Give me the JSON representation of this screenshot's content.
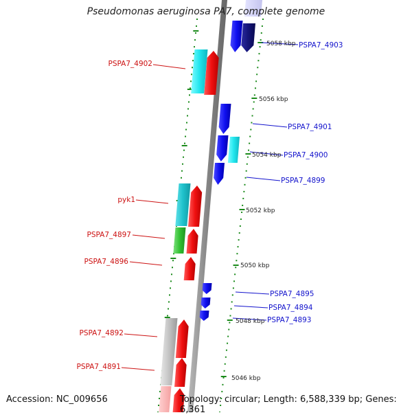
{
  "title": "Pseudomonas aeruginosa PA7, complete genome",
  "accession": "Accession: NC_009656",
  "summary": "Topology: circular; Length: 6,588,339 bp; Genes: 6,361",
  "colors": {
    "forward": "#ee1111",
    "reverse": "#1111ee",
    "forward_label": "#cc1111",
    "reverse_label": "#1111cc",
    "backbone": "#8a8a8a",
    "tick": "#1a8a1a"
  },
  "scale_labels": [
    {
      "label": "5058 kbp",
      "kbp": 5058
    },
    {
      "label": "5056 kbp",
      "kbp": 5056
    },
    {
      "label": "5054 kbp",
      "kbp": 5054
    },
    {
      "label": "5052 kbp",
      "kbp": 5052
    },
    {
      "label": "5050 kbp",
      "kbp": 5050
    },
    {
      "label": "5048 kbp",
      "kbp": 5048
    },
    {
      "label": "5046 kbp",
      "kbp": 5046
    }
  ],
  "genes": [
    {
      "name": "PSPA7_4903",
      "strand": "reverse",
      "labeled": true
    },
    {
      "name": "PSPA7_4902",
      "strand": "forward",
      "labeled": true
    },
    {
      "name": "PSPA7_4901",
      "strand": "reverse",
      "labeled": true
    },
    {
      "name": "PSPA7_4900",
      "strand": "reverse",
      "labeled": true
    },
    {
      "name": "PSPA7_4899",
      "strand": "reverse",
      "labeled": true
    },
    {
      "name": "pyk1",
      "strand": "forward",
      "labeled": true
    },
    {
      "name": "PSPA7_4897",
      "strand": "forward",
      "labeled": true
    },
    {
      "name": "PSPA7_4896",
      "strand": "forward",
      "labeled": true
    },
    {
      "name": "PSPA7_4895",
      "strand": "reverse",
      "labeled": true
    },
    {
      "name": "PSPA7_4894",
      "strand": "reverse",
      "labeled": true
    },
    {
      "name": "PSPA7_4893",
      "strand": "reverse",
      "labeled": true
    },
    {
      "name": "PSPA7_4892",
      "strand": "forward",
      "labeled": true
    },
    {
      "name": "PSPA7_4891",
      "strand": "forward",
      "labeled": true
    }
  ]
}
